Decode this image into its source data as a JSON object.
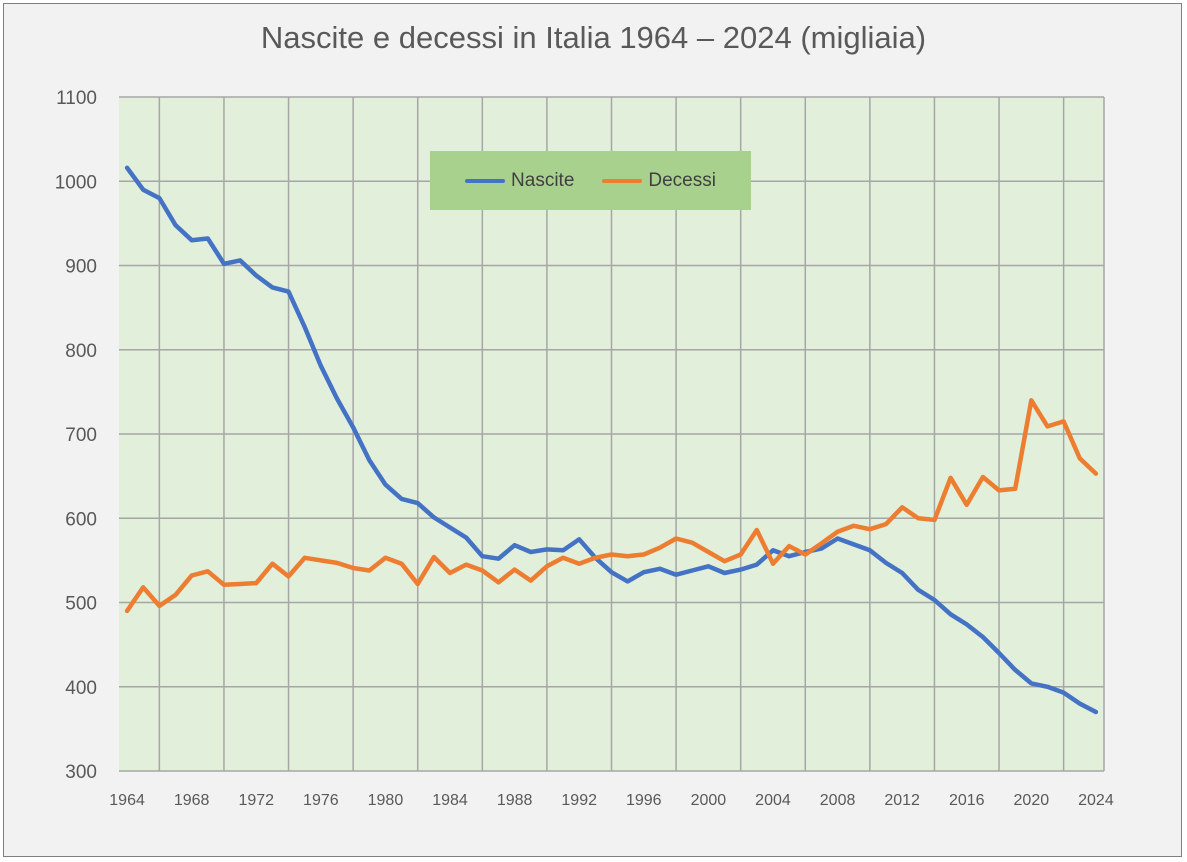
{
  "colors": {
    "nascite": "#4472c4",
    "decessi": "#ed7d31",
    "plot_bg": "#e2efda",
    "grid": "#a6a6a6",
    "legend_bg": "#a9d18e"
  },
  "chart_data": {
    "type": "line",
    "title": "Nascite e decessi in Italia 1964 – 2024 (migliaia)",
    "xlabel": "",
    "ylabel": "",
    "xlim": [
      1963.5,
      2024.5
    ],
    "ylim": [
      300,
      1100
    ],
    "yticks": [
      "300",
      "400",
      "500",
      "600",
      "700",
      "800",
      "900",
      "1000",
      "1100"
    ],
    "xticks": [
      "1964",
      "1968",
      "1972",
      "1976",
      "1980",
      "1984",
      "1988",
      "1992",
      "1996",
      "2000",
      "2004",
      "2008",
      "2012",
      "2016",
      "2020",
      "2024"
    ],
    "grid": true,
    "legend_position": "top-center",
    "x": [
      1964,
      1965,
      1966,
      1967,
      1968,
      1969,
      1970,
      1971,
      1972,
      1973,
      1974,
      1975,
      1976,
      1977,
      1978,
      1979,
      1980,
      1981,
      1982,
      1983,
      1984,
      1985,
      1986,
      1987,
      1988,
      1989,
      1990,
      1991,
      1992,
      1993,
      1994,
      1995,
      1996,
      1997,
      1998,
      1999,
      2000,
      2001,
      2002,
      2003,
      2004,
      2005,
      2006,
      2007,
      2008,
      2009,
      2010,
      2011,
      2012,
      2013,
      2014,
      2015,
      2016,
      2017,
      2018,
      2019,
      2020,
      2021,
      2022,
      2023,
      2024
    ],
    "series": [
      {
        "name": "Nascite",
        "values": [
          1016,
          990,
          980,
          948,
          930,
          932,
          902,
          906,
          888,
          874,
          869,
          827,
          781,
          742,
          708,
          669,
          640,
          623,
          618,
          601,
          589,
          577,
          555,
          552,
          568,
          560,
          563,
          562,
          575,
          553,
          536,
          525,
          536,
          540,
          533,
          538,
          543,
          535,
          539,
          545,
          562,
          555,
          560,
          564,
          576,
          569,
          562,
          547,
          535,
          515,
          503,
          486,
          474,
          459,
          440,
          420,
          404,
          400,
          393,
          380,
          370
        ]
      },
      {
        "name": "Decessi",
        "values": [
          490,
          518,
          496,
          509,
          532,
          537,
          521,
          522,
          523,
          546,
          531,
          553,
          550,
          547,
          541,
          538,
          553,
          546,
          522,
          554,
          535,
          545,
          538,
          524,
          539,
          526,
          543,
          553,
          546,
          553,
          557,
          555,
          557,
          565,
          576,
          571,
          560,
          549,
          557,
          586,
          546,
          567,
          557,
          570,
          584,
          591,
          587,
          593,
          613,
          600,
          598,
          648,
          616,
          649,
          633,
          635,
          740,
          709,
          715,
          671,
          653
        ]
      }
    ]
  }
}
